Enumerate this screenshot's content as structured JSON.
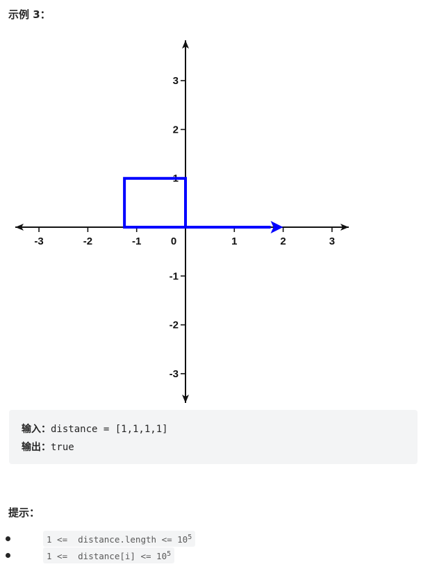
{
  "example": {
    "title": "示例 3："
  },
  "chart_data": {
    "type": "line",
    "title": "",
    "xlabel": "",
    "ylabel": "",
    "xlim": [
      -3,
      3
    ],
    "ylim": [
      -3,
      3
    ],
    "x_ticks": [
      "-3",
      "-2",
      "-1",
      "0",
      "1",
      "2",
      "3"
    ],
    "y_ticks": [
      "3",
      "2",
      "1",
      "-1",
      "-2",
      "-3"
    ],
    "grid": false,
    "series": [
      {
        "path": [
          {
            "x": 0,
            "y": 0
          },
          {
            "x": 0,
            "y": 1
          },
          {
            "x": -1.25,
            "y": 1
          },
          {
            "x": -1.25,
            "y": 0
          },
          {
            "x": 2,
            "y": 0
          }
        ],
        "color": "#0000ff",
        "end_marker": "arrow"
      }
    ]
  },
  "io": {
    "input_label": "输入：",
    "input_value": "distance = [1,1,1,1]",
    "output_label": "输出：",
    "output_value": "true"
  },
  "hints": {
    "title": "提示：",
    "items": [
      {
        "text": "1 <=  distance.length <= 10",
        "sup": "5"
      },
      {
        "text": "1 <=  distance[i] <= 10",
        "sup": "5"
      }
    ]
  }
}
